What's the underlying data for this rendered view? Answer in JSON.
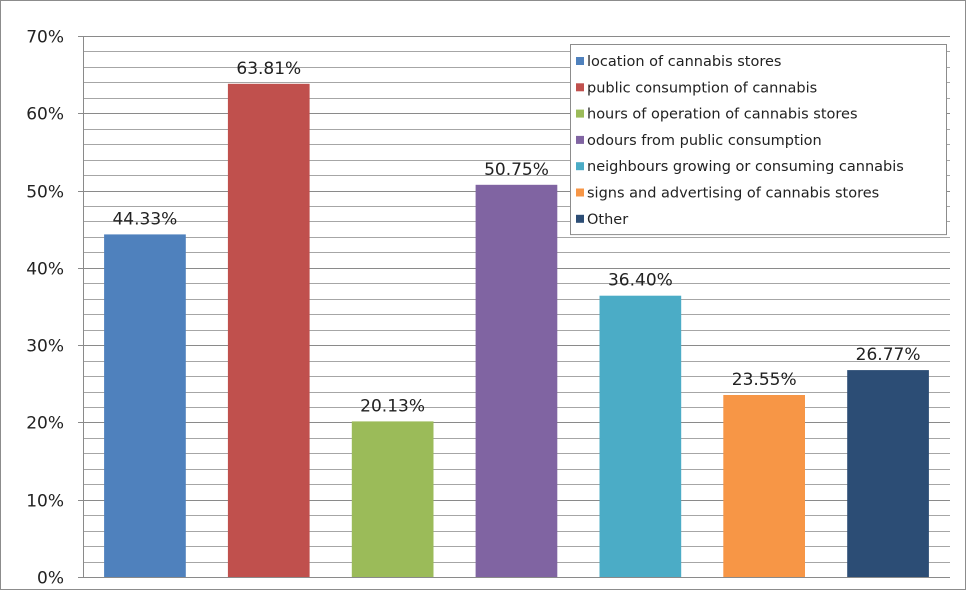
{
  "chart_data": {
    "type": "bar",
    "title": "",
    "xlabel": "",
    "ylabel": "",
    "ylim": [
      0,
      70
    ],
    "y_tick_step": 10,
    "y_minor_step": 2,
    "y_tick_format": "percent",
    "grid": true,
    "legend_position": "top-right",
    "categories": [
      "location of cannabis stores",
      "public consumption of cannabis",
      "hours of operation of cannabis stores",
      "odours from public consumption",
      "neighbours growing or consuming cannabis",
      "signs and advertising of cannabis stores",
      "Other"
    ],
    "values": [
      44.33,
      63.81,
      20.13,
      50.75,
      36.4,
      23.55,
      26.77
    ],
    "data_labels": [
      "44.33%",
      "63.81%",
      "20.13%",
      "50.75%",
      "36.40%",
      "23.55%",
      "26.77%"
    ],
    "y_tick_labels": [
      "0%",
      "10%",
      "20%",
      "30%",
      "40%",
      "50%",
      "60%",
      "70%"
    ],
    "colors": [
      "#4F81BD",
      "#C0504D",
      "#9BBB59",
      "#8064A2",
      "#4BACC6",
      "#F79646",
      "#2C4D75"
    ]
  }
}
